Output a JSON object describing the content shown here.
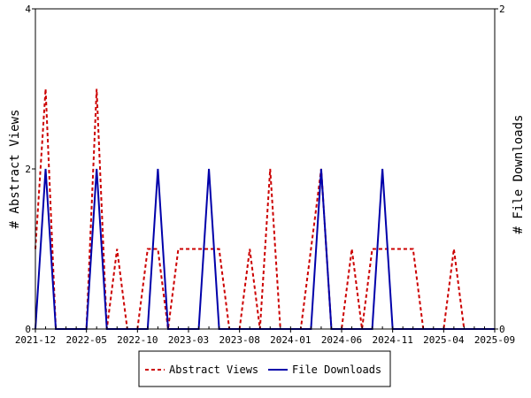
{
  "chart_data": {
    "type": "line",
    "xlabel": "",
    "ylabel_left": "# Abstract Views",
    "ylabel_right": "# File Downloads",
    "x_ticks": [
      "2021-12",
      "2022-05",
      "2022-10",
      "2023-03",
      "2023-08",
      "2024-01",
      "2024-06",
      "2024-11",
      "2025-04",
      "2025-09"
    ],
    "y_left_ticks": [
      "0",
      "2",
      "4"
    ],
    "y_right_ticks": [
      "0",
      "2"
    ],
    "ylim_left": [
      0,
      4
    ],
    "ylim_right": [
      0,
      2
    ],
    "grid": false,
    "legend_position": "bottom-center",
    "x_range": [
      "2021-12",
      "2025-09"
    ],
    "series": [
      {
        "name": "Abstract Views",
        "axis": "left",
        "color": "#cc0000",
        "style": "dashed",
        "points": [
          [
            "2021-12",
            1
          ],
          [
            "2022-01",
            3
          ],
          [
            "2022-02",
            0
          ],
          [
            "2022-03",
            0
          ],
          [
            "2022-04",
            0
          ],
          [
            "2022-05",
            0
          ],
          [
            "2022-06",
            3
          ],
          [
            "2022-07",
            0
          ],
          [
            "2022-08",
            1
          ],
          [
            "2022-09",
            0
          ],
          [
            "2022-10",
            0
          ],
          [
            "2022-11",
            1
          ],
          [
            "2022-12",
            1
          ],
          [
            "2023-01",
            0
          ],
          [
            "2023-02",
            1
          ],
          [
            "2023-03",
            1
          ],
          [
            "2023-04",
            1
          ],
          [
            "2023-05",
            1
          ],
          [
            "2023-06",
            1
          ],
          [
            "2023-07",
            0
          ],
          [
            "2023-08",
            0
          ],
          [
            "2023-09",
            1
          ],
          [
            "2023-10",
            0
          ],
          [
            "2023-11",
            2
          ],
          [
            "2023-12",
            0
          ],
          [
            "2024-01",
            0
          ],
          [
            "2024-02",
            0
          ],
          [
            "2024-03",
            1
          ],
          [
            "2024-04",
            2
          ],
          [
            "2024-05",
            0
          ],
          [
            "2024-06",
            0
          ],
          [
            "2024-07",
            1
          ],
          [
            "2024-08",
            0
          ],
          [
            "2024-09",
            1
          ],
          [
            "2024-10",
            1
          ],
          [
            "2024-11",
            1
          ],
          [
            "2024-12",
            1
          ],
          [
            "2025-01",
            1
          ],
          [
            "2025-02",
            0
          ],
          [
            "2025-03",
            0
          ],
          [
            "2025-04",
            0
          ],
          [
            "2025-05",
            1
          ],
          [
            "2025-06",
            0
          ],
          [
            "2025-07",
            0
          ],
          [
            "2025-08",
            0
          ],
          [
            "2025-09",
            0
          ]
        ]
      },
      {
        "name": "File Downloads",
        "axis": "right",
        "color": "#0000aa",
        "style": "solid",
        "points": [
          [
            "2021-12",
            0
          ],
          [
            "2022-01",
            1
          ],
          [
            "2022-02",
            0
          ],
          [
            "2022-03",
            0
          ],
          [
            "2022-04",
            0
          ],
          [
            "2022-05",
            0
          ],
          [
            "2022-06",
            1
          ],
          [
            "2022-07",
            0
          ],
          [
            "2022-08",
            0
          ],
          [
            "2022-09",
            0
          ],
          [
            "2022-10",
            0
          ],
          [
            "2022-11",
            0
          ],
          [
            "2022-12",
            1
          ],
          [
            "2023-01",
            0
          ],
          [
            "2023-02",
            0
          ],
          [
            "2023-03",
            0
          ],
          [
            "2023-04",
            0
          ],
          [
            "2023-05",
            1
          ],
          [
            "2023-06",
            0
          ],
          [
            "2023-07",
            0
          ],
          [
            "2023-08",
            0
          ],
          [
            "2023-09",
            0
          ],
          [
            "2023-10",
            0
          ],
          [
            "2023-11",
            0
          ],
          [
            "2023-12",
            0
          ],
          [
            "2024-01",
            0
          ],
          [
            "2024-02",
            0
          ],
          [
            "2024-03",
            0
          ],
          [
            "2024-04",
            1
          ],
          [
            "2024-05",
            0
          ],
          [
            "2024-06",
            0
          ],
          [
            "2024-07",
            0
          ],
          [
            "2024-08",
            0
          ],
          [
            "2024-09",
            0
          ],
          [
            "2024-10",
            1
          ],
          [
            "2024-11",
            0
          ],
          [
            "2024-12",
            0
          ],
          [
            "2025-01",
            0
          ],
          [
            "2025-02",
            0
          ],
          [
            "2025-03",
            0
          ],
          [
            "2025-04",
            0
          ],
          [
            "2025-05",
            0
          ],
          [
            "2025-06",
            0
          ],
          [
            "2025-07",
            0
          ],
          [
            "2025-08",
            0
          ],
          [
            "2025-09",
            0
          ]
        ]
      }
    ]
  }
}
